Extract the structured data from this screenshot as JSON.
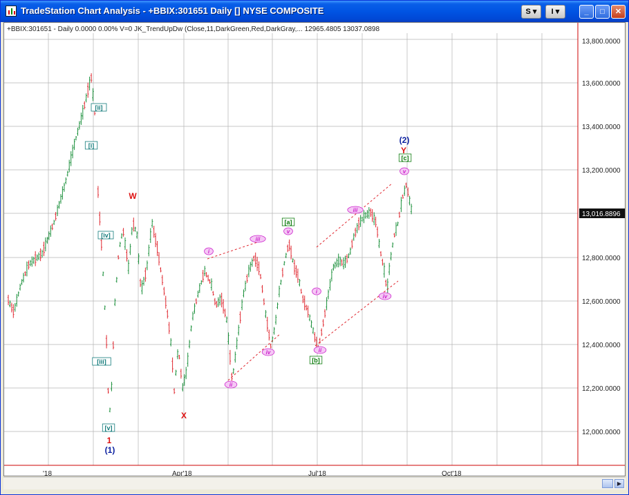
{
  "window": {
    "title": "TradeStation Chart Analysis - +BBIX:301651 Daily [] NYSE COMPOSITE",
    "buttons": {
      "s": "S",
      "i": "I",
      "min": "_",
      "max": "□",
      "close": "✕"
    }
  },
  "header": {
    "text": "+BBIX:301651 - Daily  0.0000  0.00%  V=0  JK_TrendUpDw (Close,11,DarkGreen,Red,DarkGray,...  12965.4805  13037.0898"
  },
  "price_axis": {
    "labels": [
      "13,800.0000",
      "13,600.0000",
      "13,400.0000",
      "13,200.0000",
      "13,000.0000",
      "12,800.0000",
      "12,600.0000",
      "12,400.0000",
      "12,200.0000",
      "12,000.0000"
    ],
    "last_price": "13,016.8896"
  },
  "time_axis": {
    "labels": [
      "'18",
      "Apr'18",
      "Jul'18",
      "Oct'18"
    ]
  },
  "annotations": {
    "i_box": "[i]",
    "ii_box": "[ii]",
    "iii_box": "[iii]",
    "iv_box": "[iv]",
    "v_box": "[v]",
    "one": "1",
    "one_paren": "(1)",
    "W": "W",
    "X": "X",
    "Y": "Y",
    "two_paren": "(2)",
    "a": "[a]",
    "b": "[b]",
    "c": "[c]",
    "ci_1": "i",
    "ci_ii_1": "ii",
    "ci_iii_1": "iii",
    "ci_iv_1": "iv",
    "ci_v_1": "v",
    "ci_i_2": "i",
    "ci_ii_2": "ii",
    "ci_iii_2": "iii",
    "ci_iv_2": "iv",
    "ci_v_2": "v"
  },
  "colors": {
    "up": "#1a8f3a",
    "down": "#e0272f",
    "magenta": "#cc22cc",
    "navy": "#0a1fa0",
    "red": "#dd1111",
    "green": "#0a7a0a",
    "teal": "#127a7a",
    "grid": "#b4b4b4"
  }
}
